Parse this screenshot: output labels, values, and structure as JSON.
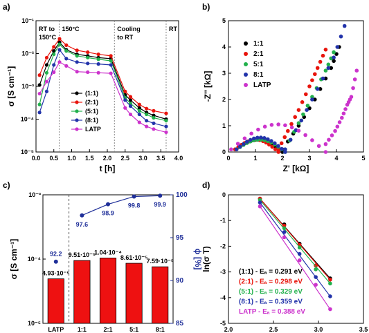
{
  "chart_data": [
    {
      "panel": "a)",
      "type": "line",
      "ylabel": "σ [S cm⁻¹]",
      "xlabel": "t [h]",
      "xlim": [
        0.0,
        4.0
      ],
      "ylim": [
        1e-05,
        0.1
      ],
      "yscale": "log",
      "xticks": [
        "0.0",
        "0.5",
        "1.0",
        "1.5",
        "2.0",
        "2.5",
        "3.0",
        "3.5",
        "4.0"
      ],
      "yticks": [
        "10⁻⁵",
        "10⁻⁴",
        "10⁻³",
        "10⁻²",
        "10⁻¹"
      ],
      "regions": [
        {
          "label": "RT to\n150°C",
          "x0": 0.0,
          "x1": 0.65
        },
        {
          "label": "150°C",
          "x0": 0.65,
          "x1": 2.2
        },
        {
          "label": "Cooling\nto RT",
          "x0": 2.2,
          "x1": 3.65
        },
        {
          "label": "RT",
          "x0": 3.65,
          "x1": 4.0
        }
      ],
      "legend_position": "center-left",
      "x": [
        0.1,
        0.3,
        0.5,
        0.66,
        0.85,
        1.15,
        1.45,
        1.75,
        2.1,
        2.5,
        2.65,
        2.9,
        3.1,
        3.3,
        3.65
      ],
      "series": [
        {
          "name": "(1:1)",
          "color": "#000000",
          "values": [
            0.0011,
            0.0045,
            0.012,
            0.022,
            0.013,
            0.0095,
            0.0085,
            0.0075,
            0.007,
            0.00055,
            0.00038,
            0.00022,
            0.00016,
            0.00013,
            0.0001
          ]
        },
        {
          "name": "(2:1)",
          "color": "#e8140c",
          "values": [
            0.0022,
            0.0075,
            0.016,
            0.028,
            0.018,
            0.0125,
            0.011,
            0.0095,
            0.0085,
            0.0007,
            0.00048,
            0.00028,
            0.00021,
            0.00018,
            0.00015
          ]
        },
        {
          "name": "(5:1)",
          "color": "#22b14c",
          "values": [
            0.00028,
            0.0026,
            0.0095,
            0.019,
            0.012,
            0.0085,
            0.0075,
            0.0067,
            0.006,
            0.00045,
            0.0003,
            0.00018,
            0.00014,
            0.00011,
            9e-05
          ]
        },
        {
          "name": "(8:1)",
          "color": "#2233aa",
          "values": [
            0.00016,
            0.0007,
            0.0045,
            0.013,
            0.007,
            0.0055,
            0.005,
            0.0048,
            0.0045,
            0.00038,
            0.00025,
            0.00014,
            9e-05,
            7.5e-05,
            6e-05
          ]
        },
        {
          "name": "LATP",
          "color": "#cc33cc",
          "values": [
            0.0006,
            0.0014,
            0.0027,
            0.0055,
            0.0042,
            0.0028,
            0.0027,
            0.0026,
            0.0025,
            0.00022,
            0.00014,
            8e-05,
            6e-05,
            5e-05,
            4e-05
          ]
        }
      ]
    },
    {
      "panel": "b)",
      "type": "scatter",
      "xlabel": "Z' [kΩ]",
      "ylabel": "-Z'' [kΩ]",
      "xlim": [
        0,
        5
      ],
      "ylim": [
        0,
        5
      ],
      "xticks": [
        "0",
        "1",
        "2",
        "3",
        "4",
        "5"
      ],
      "yticks": [
        "0",
        "1",
        "2",
        "3",
        "4",
        "5"
      ],
      "legend_position": "top-left",
      "series": [
        {
          "name": "1:1",
          "color": "#000000",
          "arc": {
            "x0": 0.25,
            "x1": 2.0,
            "h": 0.42
          },
          "tail": [
            [
              2.0,
              0.1
            ],
            [
              2.6,
              1.0
            ],
            [
              3.2,
              2.0
            ],
            [
              3.8,
              3.2
            ],
            [
              4.1,
              4.0
            ]
          ]
        },
        {
          "name": "2:1",
          "color": "#e8140c",
          "arc": {
            "x0": 0.25,
            "x1": 1.85,
            "h": 0.42
          },
          "tail": [
            [
              1.85,
              0.1
            ],
            [
              2.2,
              0.8
            ],
            [
              2.6,
              1.6
            ],
            [
              3.0,
              2.5
            ],
            [
              3.3,
              3.2
            ],
            [
              3.6,
              3.9
            ]
          ]
        },
        {
          "name": "5:1",
          "color": "#22b14c",
          "arc": {
            "x0": 0.3,
            "x1": 2.1,
            "h": 0.42
          },
          "tail": [
            [
              2.1,
              0.1
            ],
            [
              2.6,
              1.1
            ],
            [
              3.1,
              2.1
            ],
            [
              3.6,
              3.1
            ],
            [
              3.9,
              3.8
            ]
          ]
        },
        {
          "name": "8:1",
          "color": "#2233aa",
          "arc": {
            "x0": 0.3,
            "x1": 2.1,
            "h": 0.5
          },
          "tail": [
            [
              2.1,
              0.1
            ],
            [
              2.7,
              1.2
            ],
            [
              3.3,
              2.4
            ],
            [
              3.9,
              3.6
            ],
            [
              4.3,
              4.8
            ]
          ]
        },
        {
          "name": "LATP",
          "color": "#cc33cc",
          "arc": {
            "x0": 0.1,
            "x1": 3.6,
            "h": 1.0
          },
          "tail": [
            [
              3.6,
              0.3
            ],
            [
              3.95,
              0.8
            ],
            [
              4.2,
              1.3
            ],
            [
              4.4,
              1.8
            ],
            [
              4.55,
              2.1
            ],
            [
              4.75,
              3.1
            ]
          ]
        }
      ]
    },
    {
      "panel": "c)",
      "type": "bar",
      "ylabel": "σtot [S cm⁻¹]",
      "y2label": "ϕ [%]",
      "yscale": "log",
      "ylim": [
        1e-05,
        0.001
      ],
      "y2lim": [
        85,
        100
      ],
      "yticks": [
        "10⁻⁵",
        "10⁻⁴",
        "10⁻³"
      ],
      "y2ticks": [
        "85",
        "90",
        "95",
        "100"
      ],
      "categories": [
        "LATP",
        "1:1",
        "2:1",
        "5:1",
        "8:1"
      ],
      "values": [
        4.93e-05,
        9.51e-05,
        0.000104,
        8.61e-05,
        7.59e-05
      ],
      "value_labels": [
        "4.93·10⁻⁵",
        "9.51·10⁻⁵",
        "1.04·10⁻⁴",
        "8.61·10⁻⁵",
        "7.59·10⁻⁵"
      ],
      "bar_color": "#ee1111",
      "density": [
        92.2,
        97.6,
        98.9,
        99.8,
        99.9
      ],
      "density_labels": [
        "92.2",
        "97.6",
        "98.9",
        "99.8",
        "99.9"
      ],
      "density_color": "#1f2f99"
    },
    {
      "panel": "d)",
      "type": "scatter",
      "ylabel": "ln(σtot T)",
      "xlim": [
        2.0,
        3.5
      ],
      "ylim": [
        -5,
        0
      ],
      "yticks": [
        "0",
        "-1",
        "-2",
        "-3",
        "-4",
        "-5"
      ],
      "xticks": [
        "2.0",
        "2.5",
        "3.0",
        "3.5"
      ],
      "x": [
        2.35,
        2.62,
        2.79,
        2.97,
        3.13
      ],
      "series": [
        {
          "name": "(1:1) - Eₐ = 0.291 eV",
          "color": "#000000",
          "values": [
            -0.15,
            -1.15,
            -1.9,
            -2.75,
            -3.25
          ]
        },
        {
          "name": "(2:1) - Eₐ = 0.298 eV",
          "color": "#e8140c",
          "values": [
            -0.15,
            -1.2,
            -1.95,
            -2.75,
            -3.3
          ]
        },
        {
          "name": "(5:1) - Eₐ = 0.329 eV",
          "color": "#22b14c",
          "values": [
            -0.2,
            -1.3,
            -2.05,
            -2.9,
            -3.45
          ]
        },
        {
          "name": "(8:1) - Eₐ = 0.359 eV",
          "color": "#2233aa",
          "values": [
            -0.3,
            -1.45,
            -2.3,
            -3.2,
            -3.95
          ]
        },
        {
          "name": "LATP - Eₐ = 0.388 eV",
          "color": "#cc33cc",
          "values": [
            -0.45,
            -1.65,
            -2.55,
            -3.5,
            -4.45
          ]
        }
      ]
    }
  ]
}
